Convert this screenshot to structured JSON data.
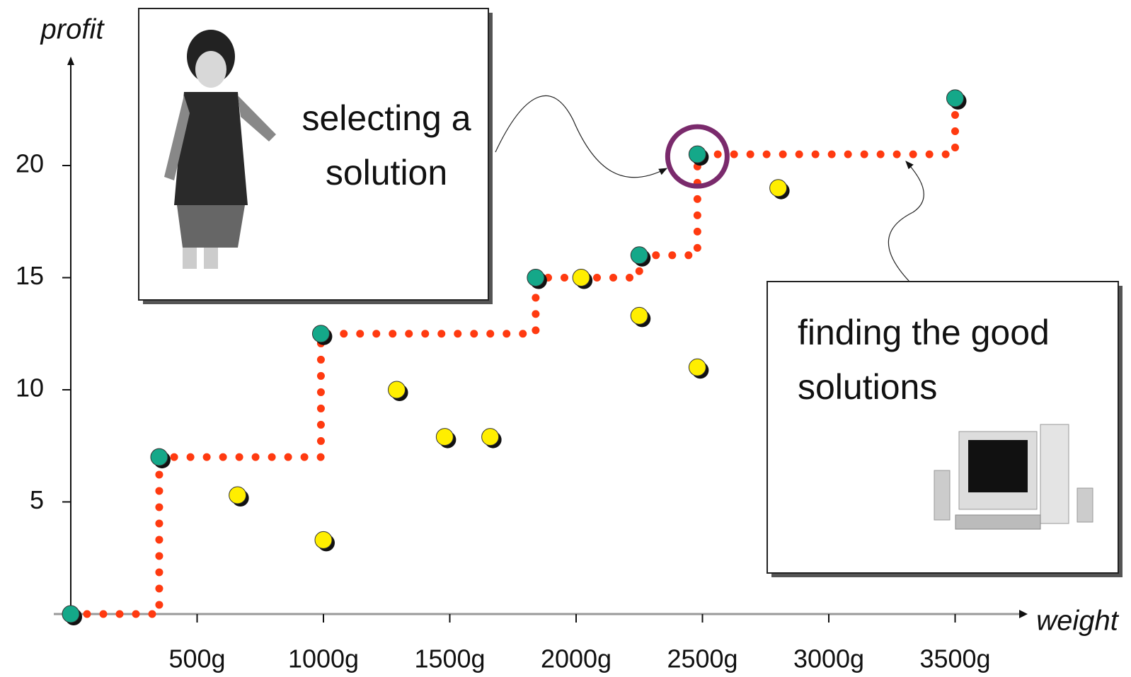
{
  "chart_data": {
    "type": "scatter",
    "x_label": "weight",
    "y_label": "profit",
    "xlim": [
      0,
      3750
    ],
    "ylim": [
      0,
      25
    ],
    "xticks": [
      {
        "value": 500,
        "label": "500g"
      },
      {
        "value": 1000,
        "label": "1000g"
      },
      {
        "value": 1500,
        "label": "1500g"
      },
      {
        "value": 2000,
        "label": "2000g"
      },
      {
        "value": 2500,
        "label": "2500g"
      },
      {
        "value": 3000,
        "label": "3000g"
      },
      {
        "value": 3500,
        "label": "3500g"
      }
    ],
    "yticks": [
      5,
      10,
      15,
      20
    ],
    "series": [
      {
        "color": "#14a889",
        "x": [
          0,
          350,
          990,
          1840,
          2250,
          2480,
          3500
        ],
        "values": [
          0,
          7,
          12.5,
          15,
          16,
          20.5,
          23
        ]
      },
      {
        "color": "#ffee00",
        "x": [
          660,
          1000,
          1290,
          1480,
          1660,
          2020,
          2250,
          2480,
          2800
        ],
        "values": [
          5.3,
          3.3,
          10,
          7.9,
          7.9,
          15,
          13.3,
          11,
          19
        ]
      }
    ],
    "front_color": "#ff3a10",
    "annotations": [
      {
        "lines": [
          "selecting a",
          "solution"
        ]
      },
      {
        "lines": [
          "finding the good",
          "solutions"
        ]
      }
    ]
  }
}
